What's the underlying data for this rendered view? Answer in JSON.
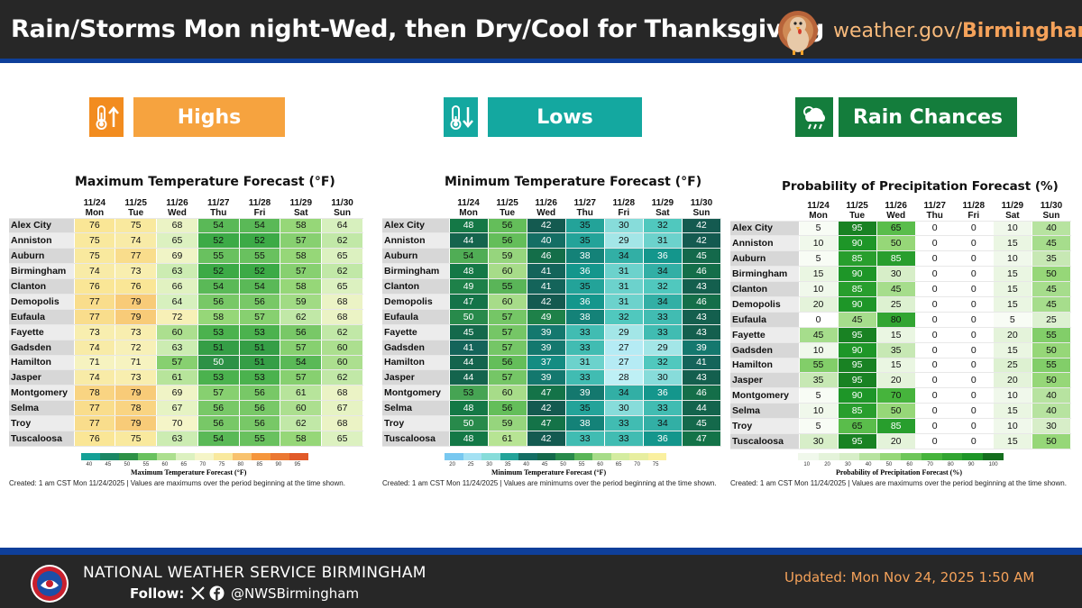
{
  "header": {
    "title": "Rain/Storms Mon night-Wed, then Dry/Cool for Thanksgiving",
    "site_prefix": "weather.gov/",
    "site_bold": "Birmingham",
    "turkey_icon": "turkey-icon"
  },
  "sections": {
    "highs": {
      "label": "Highs",
      "color": "#f6a33f",
      "icon_color": "#f28c1f"
    },
    "lows": {
      "label": "Lows",
      "color": "#14a8a0",
      "icon_color": "#14a8a0"
    },
    "rain": {
      "label": "Rain Chances",
      "color": "#147d3c",
      "icon_color": "#147d3c"
    }
  },
  "days": [
    {
      "date": "11/24",
      "day": "Mon"
    },
    {
      "date": "11/25",
      "day": "Tue"
    },
    {
      "date": "11/26",
      "day": "Wed"
    },
    {
      "date": "11/27",
      "day": "Thu"
    },
    {
      "date": "11/28",
      "day": "Fri"
    },
    {
      "date": "11/29",
      "day": "Sat"
    },
    {
      "date": "11/30",
      "day": "Sun"
    }
  ],
  "cities": [
    "Alex City",
    "Anniston",
    "Auburn",
    "Birmingham",
    "Clanton",
    "Demopolis",
    "Eufaula",
    "Fayette",
    "Gadsden",
    "Hamilton",
    "Jasper",
    "Montgomery",
    "Selma",
    "Troy",
    "Tuscaloosa"
  ],
  "max": {
    "title": "Maximum Temperature Forecast (°F)",
    "colorbar_label": "Maximum Temperature Forecast (°F)",
    "ticks": [
      "40",
      "45",
      "50",
      "55",
      "60",
      "65",
      "70",
      "75",
      "80",
      "85",
      "90",
      "95"
    ],
    "note": "Created: 1 am CST Mon 11/24/2025  |  Values are maximums over the period beginning at the time shown.",
    "values": [
      [
        76,
        75,
        68,
        54,
        54,
        58,
        64
      ],
      [
        75,
        74,
        65,
        52,
        52,
        57,
        62
      ],
      [
        75,
        77,
        69,
        55,
        55,
        58,
        65
      ],
      [
        74,
        73,
        63,
        52,
        52,
        57,
        62
      ],
      [
        76,
        76,
        66,
        54,
        54,
        58,
        65
      ],
      [
        77,
        79,
        64,
        56,
        56,
        59,
        68
      ],
      [
        77,
        79,
        72,
        58,
        57,
        62,
        68
      ],
      [
        73,
        73,
        60,
        53,
        53,
        56,
        62
      ],
      [
        74,
        72,
        63,
        51,
        51,
        57,
        60
      ],
      [
        71,
        71,
        57,
        50,
        51,
        54,
        60
      ],
      [
        74,
        73,
        61,
        53,
        53,
        57,
        62
      ],
      [
        78,
        79,
        69,
        57,
        56,
        61,
        68
      ],
      [
        77,
        78,
        67,
        56,
        56,
        60,
        67
      ],
      [
        77,
        79,
        70,
        56,
        56,
        62,
        68
      ],
      [
        76,
        75,
        63,
        54,
        55,
        58,
        65
      ]
    ]
  },
  "min": {
    "title": "Minimum Temperature Forecast (°F)",
    "colorbar_label": "Minimum Temperature Forecast (°F)",
    "ticks": [
      "20",
      "25",
      "30",
      "35",
      "40",
      "45",
      "50",
      "55",
      "60",
      "65",
      "70",
      "75"
    ],
    "note": "Created: 1 am CST Mon 11/24/2025  |  Values are minimums over the period beginning at the time shown.",
    "values": [
      [
        48,
        56,
        42,
        35,
        30,
        32,
        42
      ],
      [
        44,
        56,
        40,
        35,
        29,
        31,
        42
      ],
      [
        54,
        59,
        46,
        38,
        34,
        36,
        45
      ],
      [
        48,
        60,
        41,
        36,
        31,
        34,
        46
      ],
      [
        49,
        55,
        41,
        35,
        31,
        32,
        43
      ],
      [
        47,
        60,
        42,
        36,
        31,
        34,
        46
      ],
      [
        50,
        57,
        49,
        38,
        32,
        33,
        43
      ],
      [
        45,
        57,
        39,
        33,
        29,
        33,
        43
      ],
      [
        41,
        57,
        39,
        33,
        27,
        29,
        39
      ],
      [
        44,
        56,
        37,
        31,
        27,
        32,
        41
      ],
      [
        44,
        57,
        39,
        33,
        28,
        30,
        43
      ],
      [
        53,
        60,
        47,
        39,
        34,
        36,
        46
      ],
      [
        48,
        56,
        42,
        35,
        30,
        33,
        44
      ],
      [
        50,
        59,
        47,
        38,
        33,
        34,
        45
      ],
      [
        48,
        61,
        42,
        33,
        33,
        36,
        47
      ]
    ]
  },
  "pop": {
    "title": "Probability of Precipitation Forecast (%)",
    "colorbar_label": "Probability of Precipitation Forecast (%)",
    "ticks": [
      "10",
      "20",
      "30",
      "40",
      "50",
      "60",
      "70",
      "80",
      "90",
      "100"
    ],
    "note": "Created: 1 am CST Mon 11/24/2025  |  Values are maximums over the period beginning at the time shown.",
    "values": [
      [
        5,
        95,
        65,
        0,
        0,
        10,
        40
      ],
      [
        10,
        90,
        50,
        0,
        0,
        15,
        45
      ],
      [
        5,
        85,
        85,
        0,
        0,
        10,
        35
      ],
      [
        15,
        90,
        30,
        0,
        0,
        15,
        50
      ],
      [
        10,
        85,
        45,
        0,
        0,
        15,
        45
      ],
      [
        20,
        90,
        25,
        0,
        0,
        15,
        45
      ],
      [
        0,
        45,
        80,
        0,
        0,
        5,
        25
      ],
      [
        45,
        95,
        15,
        0,
        0,
        20,
        55
      ],
      [
        10,
        90,
        35,
        0,
        0,
        15,
        50
      ],
      [
        55,
        95,
        15,
        0,
        0,
        25,
        55
      ],
      [
        35,
        95,
        20,
        0,
        0,
        20,
        50
      ],
      [
        5,
        90,
        70,
        0,
        0,
        10,
        40
      ],
      [
        10,
        85,
        50,
        0,
        0,
        15,
        40
      ],
      [
        5,
        65,
        85,
        0,
        0,
        10,
        30
      ],
      [
        30,
        95,
        20,
        0,
        0,
        15,
        50
      ]
    ]
  },
  "footer": {
    "office": "NATIONAL WEATHER SERVICE BIRMINGHAM",
    "follow": "Follow:",
    "handle": "@NWSBirmingham",
    "updated": "Updated: Mon Nov 24, 2025 1:50 AM",
    "x_icon": "x-logo-icon",
    "facebook_icon": "facebook-icon"
  }
}
